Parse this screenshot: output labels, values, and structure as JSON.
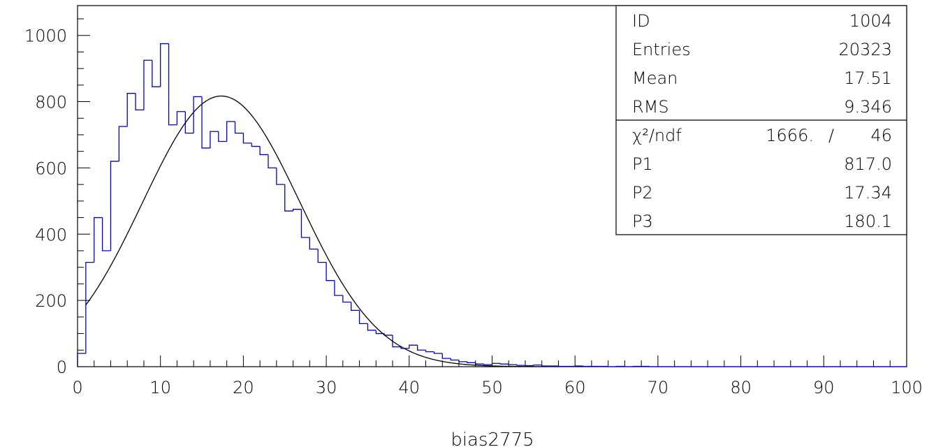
{
  "chart_data": {
    "type": "histogram",
    "xlabel": "bias2775",
    "ylabel": "",
    "xlim": [
      0,
      100
    ],
    "ylim": [
      0,
      1090
    ],
    "xticks": [
      0,
      10,
      20,
      30,
      40,
      50,
      60,
      70,
      80,
      90,
      100
    ],
    "xtick_labels": [
      "0",
      "10",
      "20",
      "30",
      "40",
      "50",
      "60",
      "70",
      "80",
      "90",
      "100"
    ],
    "yticks": [
      0,
      200,
      400,
      600,
      800,
      1000
    ],
    "ytick_labels": [
      "0",
      "200",
      "400",
      "600",
      "800",
      "1000"
    ],
    "histogram": {
      "color": "#0000cc",
      "bin_edges": [
        0,
        1,
        2,
        3,
        4,
        5,
        6,
        7,
        8,
        9,
        10,
        11,
        12,
        13,
        14,
        15,
        16,
        17,
        18,
        19,
        20,
        21,
        22,
        23,
        24,
        25,
        26,
        27,
        28,
        29,
        30,
        31,
        32,
        33,
        34,
        35,
        36,
        37,
        38,
        39,
        40,
        41,
        42,
        43,
        44,
        45,
        46,
        47,
        48,
        49,
        50,
        51,
        52,
        53,
        54,
        55,
        56,
        57,
        58,
        59,
        60,
        61,
        62,
        63,
        64,
        65,
        66,
        67,
        68,
        69,
        70,
        71,
        72,
        73,
        74,
        75,
        76,
        77,
        78,
        79,
        80,
        81,
        82,
        83,
        84,
        85,
        86,
        87,
        88,
        89,
        90,
        91,
        92,
        93,
        94,
        95,
        96,
        97,
        98,
        99,
        100
      ],
      "counts": [
        40,
        315,
        450,
        350,
        620,
        725,
        825,
        775,
        925,
        845,
        975,
        730,
        770,
        705,
        815,
        660,
        710,
        680,
        740,
        705,
        675,
        665,
        640,
        600,
        550,
        470,
        475,
        390,
        355,
        315,
        260,
        215,
        195,
        170,
        130,
        110,
        100,
        95,
        60,
        55,
        65,
        50,
        45,
        40,
        25,
        20,
        15,
        12,
        8,
        6,
        10,
        8,
        6,
        4,
        3,
        5,
        2,
        2,
        1,
        1,
        2,
        1,
        1,
        1,
        0,
        1,
        0,
        1,
        1,
        0,
        0,
        0,
        0,
        0,
        0,
        0,
        0,
        0,
        0,
        0,
        0,
        0,
        0,
        0,
        0,
        0,
        0,
        0,
        0,
        0,
        0,
        0,
        0,
        0,
        0,
        0,
        0,
        0,
        0,
        0
      ]
    },
    "fit": {
      "function": "gaussian",
      "color": "#000000",
      "range": [
        1,
        56
      ],
      "amplitude": 817.0,
      "mean": 17.34,
      "sigma": 9.5
    },
    "stats_box": {
      "rows": [
        {
          "label": "ID",
          "value": "1004"
        },
        {
          "label": "Entries",
          "value": "20323"
        },
        {
          "label": "Mean",
          "value": "17.51"
        },
        {
          "label": "RMS",
          "value": "9.346"
        }
      ],
      "fit_rows": [
        {
          "label": "χ²/ndf",
          "value": "1666.",
          "sep": "/",
          "value2": "46"
        },
        {
          "label": "P1",
          "value": "817.0"
        },
        {
          "label": "P2",
          "value": "17.34"
        },
        {
          "label": "P3",
          "value": "180.1"
        }
      ]
    }
  }
}
